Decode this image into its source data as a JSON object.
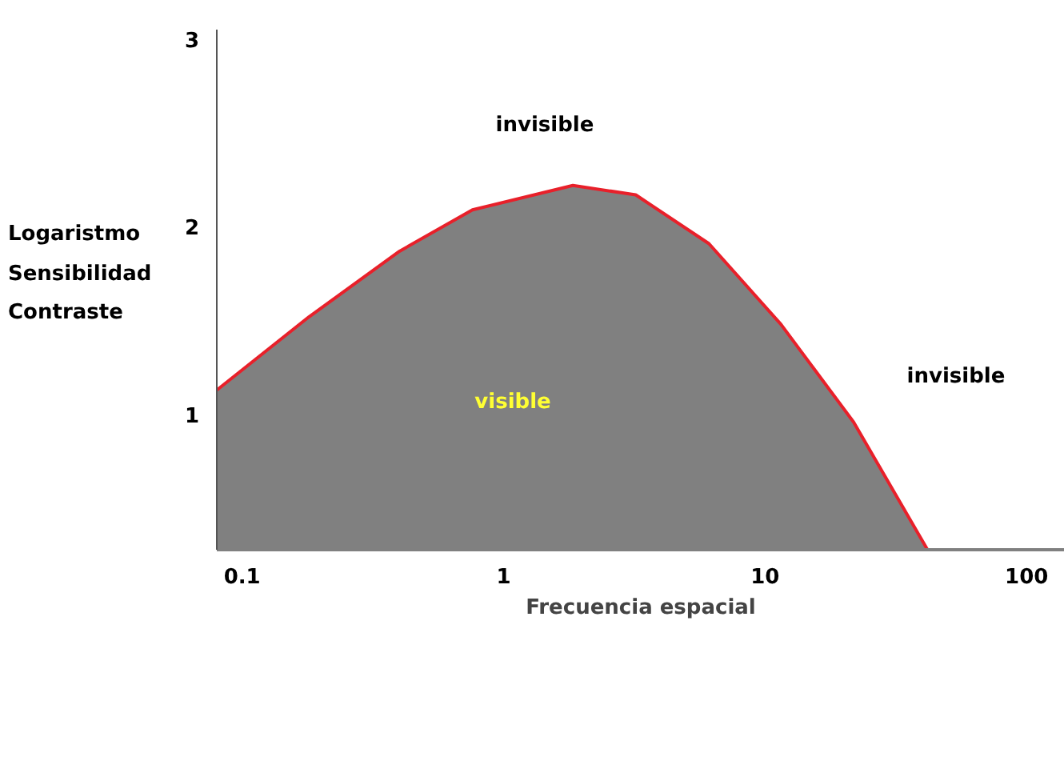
{
  "chart_data": {
    "type": "area",
    "ylabel": "Logaristmo Sensibilidad Contraste",
    "xlabel": "Frecuencia espacial",
    "log": "x",
    "grid": false,
    "xlim": [
      0.08,
      140
    ],
    "xticks": [
      0.1,
      1,
      10,
      100
    ],
    "ylim": [
      0.28,
      3.05
    ],
    "yticks": [
      1,
      2,
      3
    ],
    "series": [
      {
        "color": "#808080",
        "x": [
          0.08,
          0.18,
          0.4,
          0.76,
          1.84,
          3.2,
          6.1,
          11.5,
          21.8,
          41.8
        ],
        "values": [
          1.13,
          1.52,
          1.87,
          2.09,
          2.22,
          2.17,
          1.91,
          1.48,
          0.96,
          0.28
        ]
      }
    ],
    "annotations": [
      "invisible",
      "visible",
      "invisible"
    ]
  }
}
